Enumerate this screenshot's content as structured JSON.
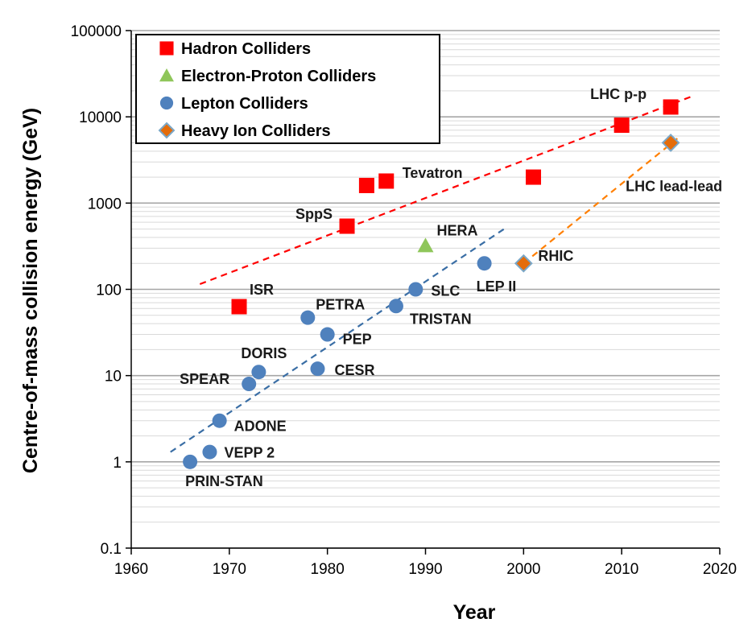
{
  "chart_data": {
    "type": "scatter",
    "title": "",
    "xlabel": "Year",
    "ylabel": "Centre-of-mass collision energy (GeV)",
    "xlim": [
      1960,
      2020
    ],
    "ylim": [
      0.1,
      100000
    ],
    "yscale": "log",
    "x_ticks": [
      "1960",
      "1970",
      "1980",
      "1990",
      "2000",
      "2010",
      "2020"
    ],
    "y_ticks": [
      "0.1",
      "1",
      "10",
      "100",
      "1000",
      "10000",
      "100000"
    ],
    "grid": true,
    "legend": "top-left",
    "series": [
      {
        "name": "Hadron Colliders",
        "marker": "square",
        "color": "#ff0000",
        "points": [
          {
            "label": "ISR",
            "x": 1971,
            "y": 63
          },
          {
            "label": "SppS",
            "x": 1982,
            "y": 540
          },
          {
            "label": "",
            "x": 1984,
            "y": 1600
          },
          {
            "label": "Tevatron",
            "x": 1986,
            "y": 1800
          },
          {
            "label": "",
            "x": 2001,
            "y": 2000
          },
          {
            "label": "",
            "x": 2010,
            "y": 8000
          },
          {
            "label": "LHC p-p",
            "x": 2015,
            "y": 13000
          }
        ]
      },
      {
        "name": "Electron-Proton Colliders",
        "marker": "triangle",
        "color": "#8fc65a",
        "points": [
          {
            "label": "HERA",
            "x": 1990,
            "y": 320
          }
        ]
      },
      {
        "name": "Lepton Colliders",
        "marker": "circle",
        "color": "#4f81bd",
        "points": [
          {
            "label": "PRIN-STAN",
            "x": 1966,
            "y": 1
          },
          {
            "label": "VEPP 2",
            "x": 1968,
            "y": 1.3
          },
          {
            "label": "ADONE",
            "x": 1969,
            "y": 3
          },
          {
            "label": "SPEAR",
            "x": 1972,
            "y": 8
          },
          {
            "label": "DORIS",
            "x": 1973,
            "y": 11
          },
          {
            "label": "PETRA",
            "x": 1978,
            "y": 47
          },
          {
            "label": "CESR",
            "x": 1979,
            "y": 12
          },
          {
            "label": "PEP",
            "x": 1980,
            "y": 30
          },
          {
            "label": "TRISTAN",
            "x": 1987,
            "y": 64
          },
          {
            "label": "SLC",
            "x": 1989,
            "y": 100
          },
          {
            "label": "LEP II",
            "x": 1996,
            "y": 200
          }
        ]
      },
      {
        "name": "Heavy Ion Colliders",
        "marker": "diamond",
        "color": "#e46c0a",
        "points": [
          {
            "label": "RHIC",
            "x": 2000,
            "y": 200
          },
          {
            "label": "LHC lead-lead",
            "x": 2015,
            "y": 5000
          }
        ]
      }
    ],
    "trend_lines": [
      {
        "color": "#ff0000",
        "x": [
          1967,
          2017
        ],
        "y": [
          115,
          17000
        ]
      },
      {
        "color": "#3a6ea5",
        "x": [
          1964,
          1998
        ],
        "y": [
          1.3,
          500
        ]
      },
      {
        "color": "#ff7f00",
        "x": [
          2000,
          2016
        ],
        "y": [
          200,
          6000
        ]
      }
    ]
  },
  "colors": {
    "background": "#ffffff",
    "grid": "#bfbfbf",
    "legend_border": "#000000"
  }
}
